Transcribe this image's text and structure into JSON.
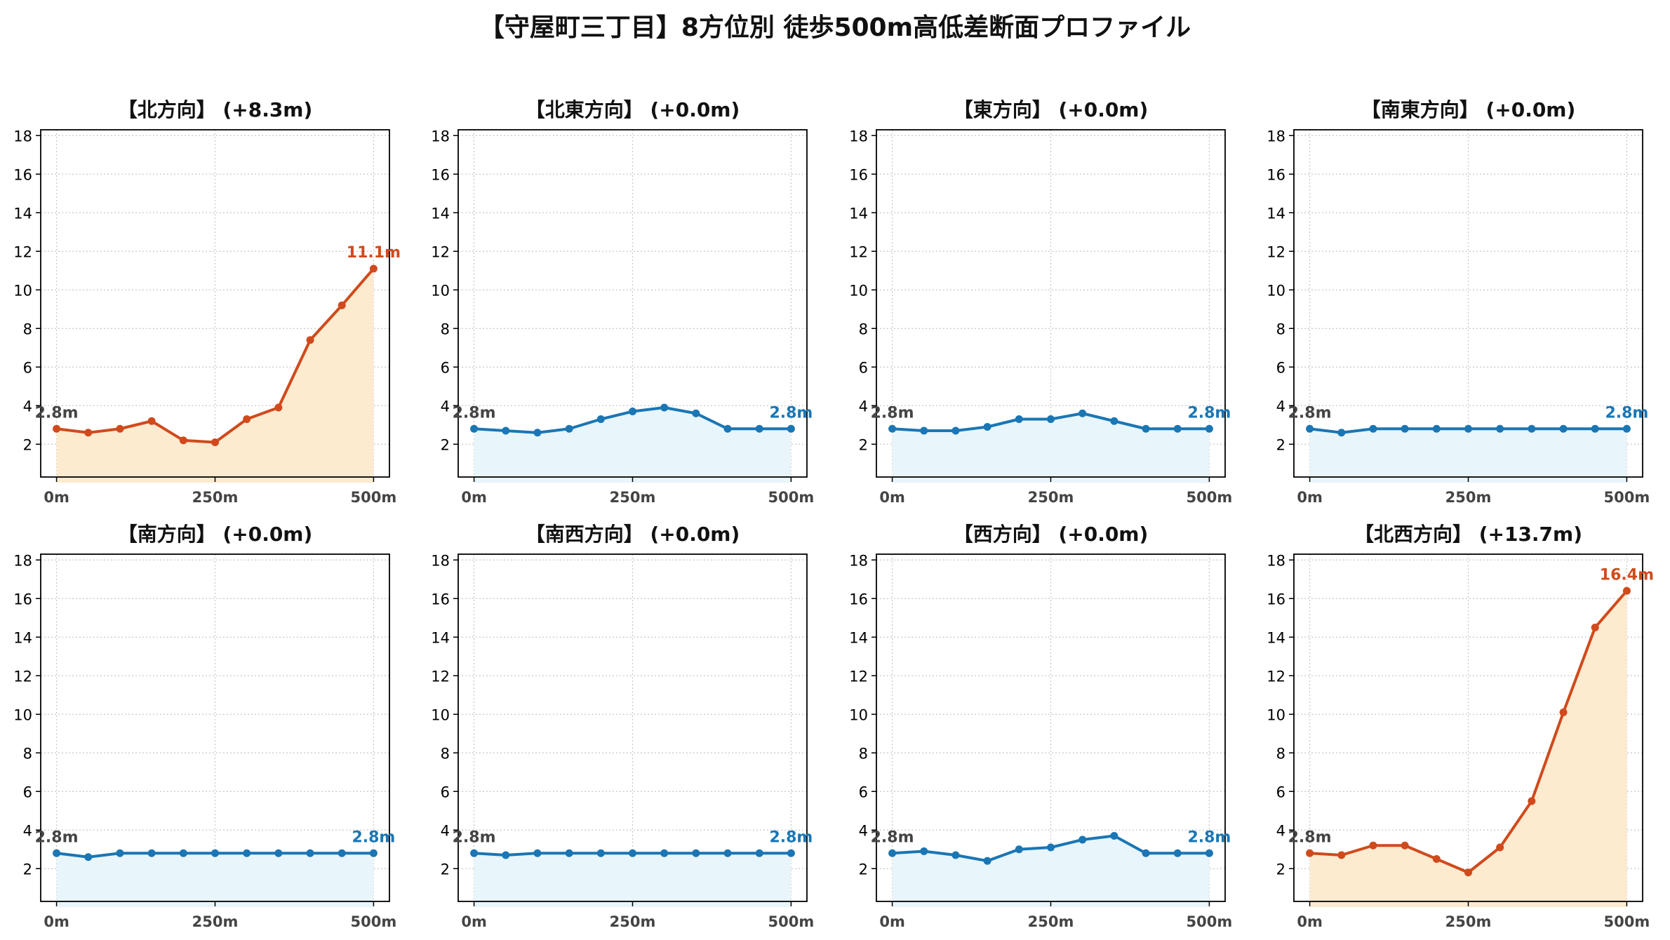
{
  "figure_title": "【守屋町三丁目】8方位別 徒歩500m高低差断面プロファイル",
  "colors": {
    "up_line": "#d04a1c",
    "up_fill": "#fdebd0",
    "flat_line": "#1a76b4",
    "flat_fill": "#e8f5fb",
    "start_label": "#444444"
  },
  "chart_data": [
    {
      "type": "area",
      "title": "【北方向】 (+8.3m)",
      "trend": "up",
      "x": [
        0,
        50,
        100,
        150,
        200,
        250,
        300,
        350,
        400,
        450,
        500
      ],
      "values": [
        2.8,
        2.6,
        2.8,
        3.2,
        2.2,
        2.1,
        3.3,
        3.9,
        7.4,
        9.2,
        11.1
      ],
      "x_ticks": [
        "0m",
        "250m",
        "500m"
      ],
      "y_ticks": [
        "2",
        "4",
        "6",
        "8",
        "10",
        "12",
        "14",
        "16",
        "18"
      ],
      "ylim": [
        0.3,
        18.3
      ],
      "start_label": "2.8m",
      "end_label": "11.1m",
      "grid": true
    },
    {
      "type": "area",
      "title": "【北東方向】 (+0.0m)",
      "trend": "flat",
      "x": [
        0,
        50,
        100,
        150,
        200,
        250,
        300,
        350,
        400,
        450,
        500
      ],
      "values": [
        2.8,
        2.7,
        2.6,
        2.8,
        3.3,
        3.7,
        3.9,
        3.6,
        2.8,
        2.8,
        2.8
      ],
      "x_ticks": [
        "0m",
        "250m",
        "500m"
      ],
      "y_ticks": [
        "2",
        "4",
        "6",
        "8",
        "10",
        "12",
        "14",
        "16",
        "18"
      ],
      "ylim": [
        0.3,
        18.3
      ],
      "start_label": "2.8m",
      "end_label": "2.8m",
      "grid": true
    },
    {
      "type": "area",
      "title": "【東方向】 (+0.0m)",
      "trend": "flat",
      "x": [
        0,
        50,
        100,
        150,
        200,
        250,
        300,
        350,
        400,
        450,
        500
      ],
      "values": [
        2.8,
        2.7,
        2.7,
        2.9,
        3.3,
        3.3,
        3.6,
        3.2,
        2.8,
        2.8,
        2.8
      ],
      "x_ticks": [
        "0m",
        "250m",
        "500m"
      ],
      "y_ticks": [
        "2",
        "4",
        "6",
        "8",
        "10",
        "12",
        "14",
        "16",
        "18"
      ],
      "ylim": [
        0.3,
        18.3
      ],
      "start_label": "2.8m",
      "end_label": "2.8m",
      "grid": true
    },
    {
      "type": "area",
      "title": "【南東方向】 (+0.0m)",
      "trend": "flat",
      "x": [
        0,
        50,
        100,
        150,
        200,
        250,
        300,
        350,
        400,
        450,
        500
      ],
      "values": [
        2.8,
        2.6,
        2.8,
        2.8,
        2.8,
        2.8,
        2.8,
        2.8,
        2.8,
        2.8,
        2.8
      ],
      "x_ticks": [
        "0m",
        "250m",
        "500m"
      ],
      "y_ticks": [
        "2",
        "4",
        "6",
        "8",
        "10",
        "12",
        "14",
        "16",
        "18"
      ],
      "ylim": [
        0.3,
        18.3
      ],
      "start_label": "2.8m",
      "end_label": "2.8m",
      "grid": true
    },
    {
      "type": "area",
      "title": "【南方向】 (+0.0m)",
      "trend": "flat",
      "x": [
        0,
        50,
        100,
        150,
        200,
        250,
        300,
        350,
        400,
        450,
        500
      ],
      "values": [
        2.8,
        2.6,
        2.8,
        2.8,
        2.8,
        2.8,
        2.8,
        2.8,
        2.8,
        2.8,
        2.8
      ],
      "x_ticks": [
        "0m",
        "250m",
        "500m"
      ],
      "y_ticks": [
        "2",
        "4",
        "6",
        "8",
        "10",
        "12",
        "14",
        "16",
        "18"
      ],
      "ylim": [
        0.3,
        18.3
      ],
      "start_label": "2.8m",
      "end_label": "2.8m",
      "grid": true
    },
    {
      "type": "area",
      "title": "【南西方向】 (+0.0m)",
      "trend": "flat",
      "x": [
        0,
        50,
        100,
        150,
        200,
        250,
        300,
        350,
        400,
        450,
        500
      ],
      "values": [
        2.8,
        2.7,
        2.8,
        2.8,
        2.8,
        2.8,
        2.8,
        2.8,
        2.8,
        2.8,
        2.8
      ],
      "x_ticks": [
        "0m",
        "250m",
        "500m"
      ],
      "y_ticks": [
        "2",
        "4",
        "6",
        "8",
        "10",
        "12",
        "14",
        "16",
        "18"
      ],
      "ylim": [
        0.3,
        18.3
      ],
      "start_label": "2.8m",
      "end_label": "2.8m",
      "grid": true
    },
    {
      "type": "area",
      "title": "【西方向】 (+0.0m)",
      "trend": "flat",
      "x": [
        0,
        50,
        100,
        150,
        200,
        250,
        300,
        350,
        400,
        450,
        500
      ],
      "values": [
        2.8,
        2.9,
        2.7,
        2.4,
        3.0,
        3.1,
        3.5,
        3.7,
        2.8,
        2.8,
        2.8
      ],
      "x_ticks": [
        "0m",
        "250m",
        "500m"
      ],
      "y_ticks": [
        "2",
        "4",
        "6",
        "8",
        "10",
        "12",
        "14",
        "16",
        "18"
      ],
      "ylim": [
        0.3,
        18.3
      ],
      "start_label": "2.8m",
      "end_label": "2.8m",
      "grid": true
    },
    {
      "type": "area",
      "title": "【北西方向】 (+13.7m)",
      "trend": "up",
      "x": [
        0,
        50,
        100,
        150,
        200,
        250,
        300,
        350,
        400,
        450,
        500
      ],
      "values": [
        2.8,
        2.7,
        3.2,
        3.2,
        2.5,
        1.8,
        3.1,
        5.5,
        10.1,
        14.5,
        16.4
      ],
      "x_ticks": [
        "0m",
        "250m",
        "500m"
      ],
      "y_ticks": [
        "2",
        "4",
        "6",
        "8",
        "10",
        "12",
        "14",
        "16",
        "18"
      ],
      "ylim": [
        0.3,
        18.3
      ],
      "start_label": "2.8m",
      "end_label": "16.4m",
      "grid": true
    }
  ]
}
